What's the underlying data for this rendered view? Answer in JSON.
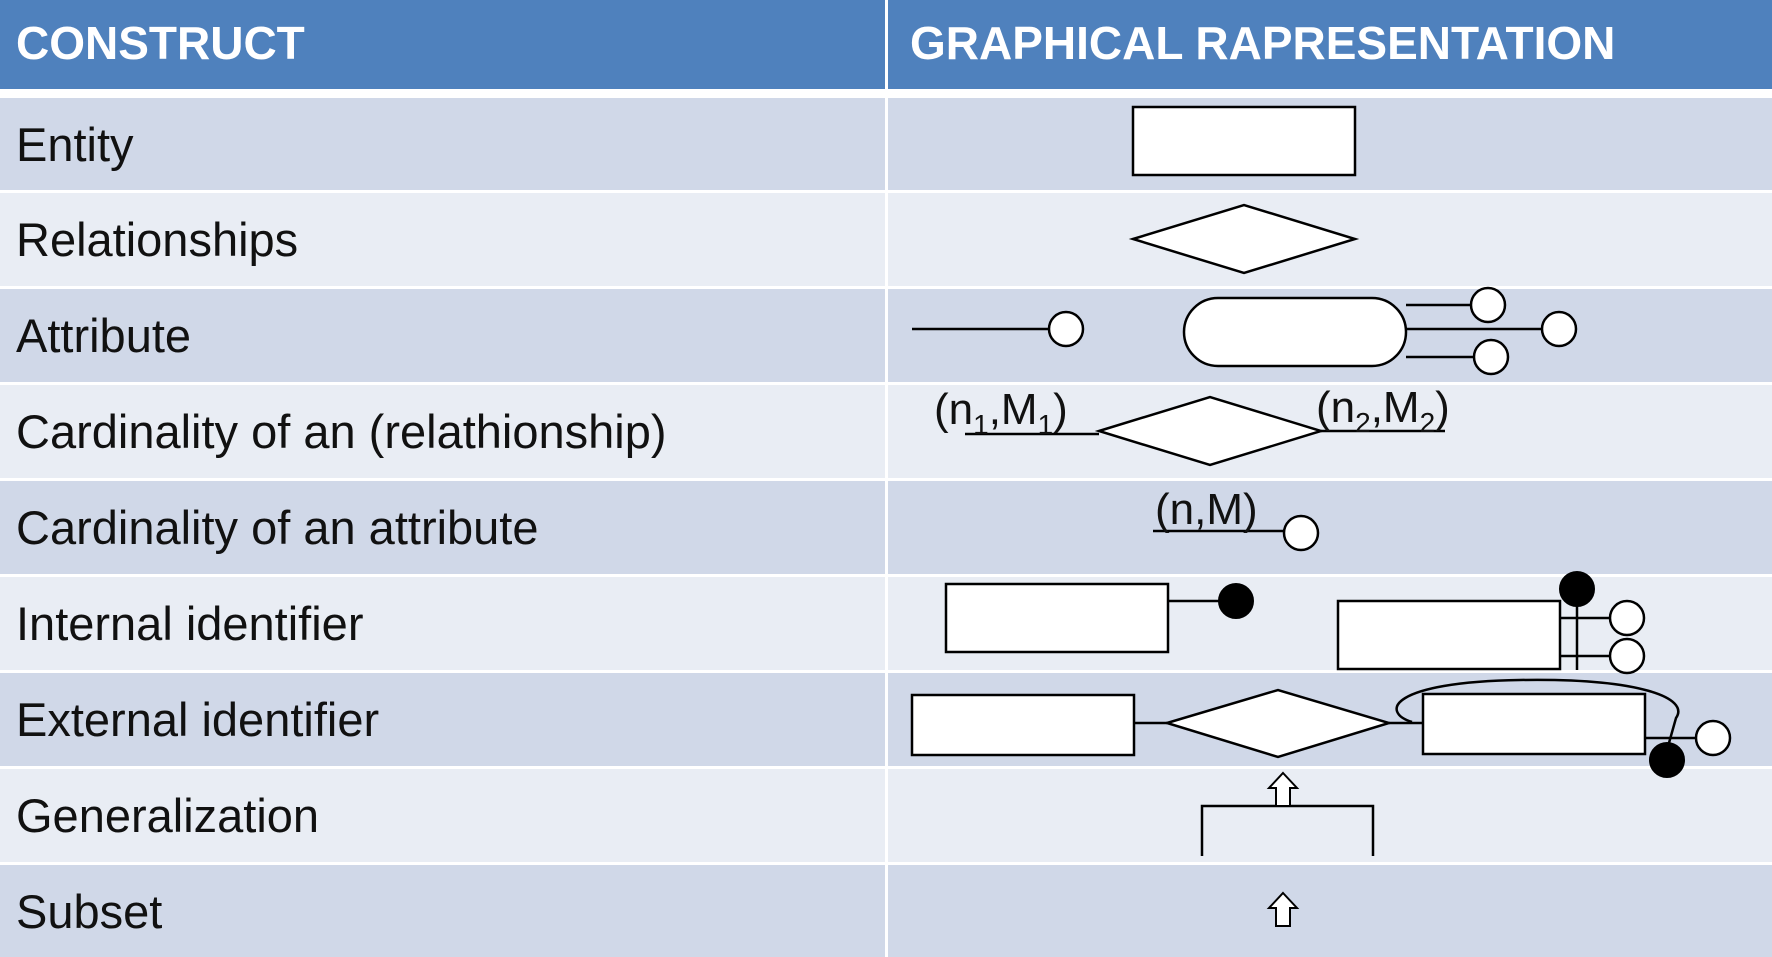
{
  "header": {
    "construct": "CONSTRUCT",
    "graphical": "GRAPHICAL RAPRESENTATION"
  },
  "colors": {
    "header_bg": "#4f81bd",
    "row_dark": "#d0d8e8",
    "row_light": "#e9edf4"
  },
  "rows": [
    {
      "label": "Entity"
    },
    {
      "label": "Relationships"
    },
    {
      "label": "Attribute"
    },
    {
      "label": "Cardinality of an (relathionship)"
    },
    {
      "label": "Cardinality of an attribute"
    },
    {
      "label": "Internal identifier"
    },
    {
      "label": "External identifier"
    },
    {
      "label": "Generalization"
    },
    {
      "label": "Subset"
    }
  ],
  "cardinality": {
    "rel_left": {
      "base1": "(n",
      "sub1": "1",
      "sep": ",M",
      "sub2": "1",
      "close": ")"
    },
    "rel_right": {
      "base1": "(n",
      "sub1": "2",
      "sep": ",M",
      "sub2": "2",
      "close": ")"
    },
    "attribute": "(n,M)"
  }
}
